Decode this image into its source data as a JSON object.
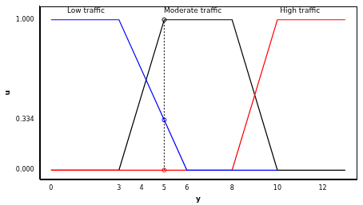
{
  "chart_data": {
    "type": "line",
    "x_label": "y",
    "y_label": "u",
    "xlim": [
      -0.5,
      13.5
    ],
    "xticks": [
      0,
      3,
      4,
      5,
      6,
      8,
      10,
      12
    ],
    "ylim": [
      -0.06,
      1.09
    ],
    "yticks": [
      {
        "value": 0,
        "label": "0.000"
      },
      {
        "value": 0.334,
        "label": "0.334"
      },
      {
        "value": 1,
        "label": "1.000"
      }
    ],
    "grid": false,
    "series": [
      {
        "color": "#0000ff",
        "x": [
          0,
          3,
          6,
          10
        ],
        "values": [
          1,
          1,
          0,
          0
        ]
      },
      {
        "color": "#ff0000",
        "x": [
          0,
          8,
          10,
          13
        ],
        "values": [
          0,
          0,
          1,
          1
        ]
      },
      {
        "color": "#000000",
        "x": [
          0,
          3,
          5,
          8,
          10,
          13
        ],
        "values": [
          0,
          0,
          1,
          1,
          0,
          0
        ]
      }
    ],
    "guide": {
      "x": [
        5,
        5
      ],
      "values": [
        0,
        1
      ],
      "color": "#000000",
      "line_style": "dotted"
    },
    "points": {
      "marker": "circle",
      "x": [
        5,
        5,
        5
      ],
      "values": [
        1,
        0.334,
        0
      ],
      "colors": [
        "#000000",
        "#0000ff",
        "#ff0000"
      ]
    },
    "annotations": [
      {
        "text": "Low traffic",
        "x": 1.54,
        "y": 1.057
      },
      {
        "text": "Moderate traffic",
        "x": 6.26,
        "y": 1.057
      },
      {
        "text": "High traffic",
        "x": 11.0,
        "y": 1.057
      }
    ]
  }
}
